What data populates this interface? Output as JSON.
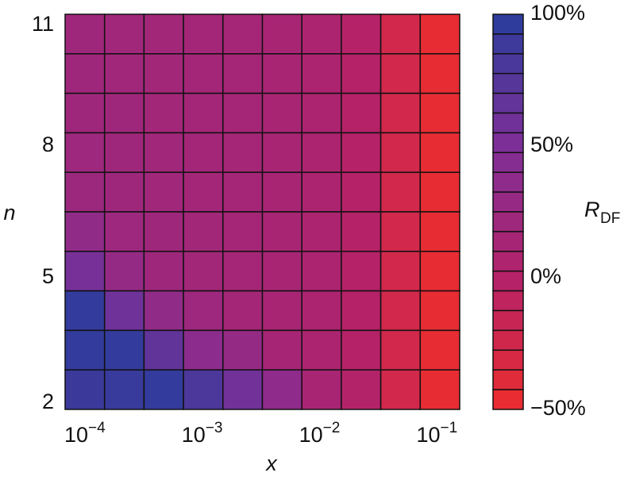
{
  "chart_data": {
    "type": "heatmap",
    "x_label": "x",
    "y_label": "n",
    "xscale": "log",
    "xlim": [
      6e-05,
      0.138
    ],
    "xticks": [
      {
        "value": 0.0001,
        "label": "10",
        "exponent": "−4"
      },
      {
        "value": 0.001,
        "label": "10",
        "exponent": "−3"
      },
      {
        "value": 0.01,
        "label": "10",
        "exponent": "−2"
      },
      {
        "value": 0.1,
        "label": "10",
        "exponent": "−1"
      }
    ],
    "ylim": [
      2,
      11
    ],
    "yticks": [
      2,
      5,
      8,
      11
    ],
    "z": [
      [
        20,
        19,
        18,
        17,
        15,
        12,
        8,
        0,
        -25,
        -45
      ],
      [
        20,
        19,
        18,
        17,
        15,
        12,
        8,
        0,
        -25,
        -45
      ],
      [
        21,
        20,
        18,
        17,
        15,
        12,
        8,
        0,
        -25,
        -45
      ],
      [
        22,
        20,
        19,
        17,
        15,
        12,
        8,
        0,
        -25,
        -45
      ],
      [
        23,
        21,
        19,
        17,
        15,
        12,
        8,
        0,
        -25,
        -45
      ],
      [
        33,
        22,
        20,
        18,
        15,
        12,
        8,
        0,
        -25,
        -45
      ],
      [
        55,
        30,
        21,
        18,
        15,
        12,
        8,
        0,
        -25,
        -45
      ],
      [
        95,
        60,
        33,
        22,
        16,
        12,
        8,
        0,
        -25,
        -45
      ],
      [
        95,
        95,
        68,
        38,
        30,
        14,
        8,
        0,
        -25,
        -45
      ],
      [
        90,
        92,
        95,
        80,
        58,
        35,
        12,
        2,
        -25,
        -45
      ]
    ],
    "colorbar_label": "R",
    "colorbar_label_sub": "DF",
    "colorbar_lim": [
      -50,
      100
    ],
    "colorbar_ticks": [
      {
        "value": -50,
        "label": "−50%"
      },
      {
        "value": 0,
        "label": "0%"
      },
      {
        "value": 50,
        "label": "50%"
      },
      {
        "value": 100,
        "label": "100%"
      }
    ],
    "colormap": [
      {
        "value": -50,
        "color": "#ec2d2d"
      },
      {
        "value": 0,
        "color": "#b52268"
      },
      {
        "value": 50,
        "color": "#7f2f98"
      },
      {
        "value": 100,
        "color": "#2a3d9c"
      }
    ]
  }
}
